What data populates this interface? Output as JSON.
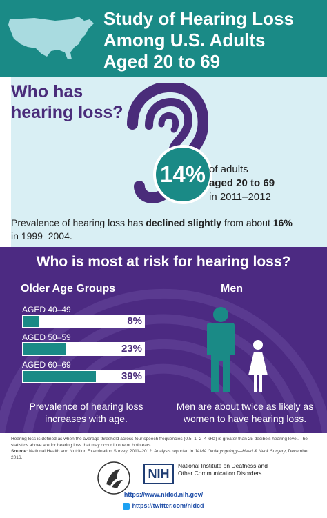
{
  "header": {
    "title_line1": "Study of Hearing Loss",
    "title_line2": "Among U.S. Adults",
    "title_line3": "Aged 20 to 69",
    "map_icon": "us-map-icon"
  },
  "who": {
    "title_line1": "Who has",
    "title_line2": "hearing loss?",
    "ear_icon": "ear-icon",
    "percent": "14%",
    "desc_line1": "of adults",
    "desc_line2": "aged 20 to 69",
    "desc_line3": "in 2011–2012",
    "prevalence_prefix": "Prevalence of hearing loss has ",
    "prevalence_bold": "declined slightly",
    "prevalence_mid": " from about ",
    "prevalence_pct": "16%",
    "prevalence_suffix": " in 1999–2004."
  },
  "risk": {
    "title": "Who is most at risk for hearing loss?",
    "age_heading": "Older Age Groups",
    "men_heading": "Men",
    "groups": [
      {
        "label": "AGED 40–49",
        "value": "8%",
        "fraction": 0.08
      },
      {
        "label": "AGED 50–59",
        "value": "23%",
        "fraction": 0.23
      },
      {
        "label": "AGED 60–69",
        "value": "39%",
        "fraction": 0.39
      }
    ],
    "age_note": "Prevalence of hearing loss increases with age.",
    "men_note": "Men are about twice as likely as women to have hearing loss.",
    "man_icon": "man-figure-icon",
    "woman_icon": "woman-figure-icon"
  },
  "footnote": {
    "line1": "Hearing loss is defined as when the average threshold across four speech frequencies (0.5–1–2–4 kHz) is greater than 25 decibels hearing level. The statistics above are for hearing loss that may occur in one or both ears.",
    "source_label": "Source:",
    "source_text": " National Health and Nutrition Examination Survey, 2011–2012. Analysis reported in ",
    "source_journal": "JAMA Otolaryngology—Head & Neck Surgery",
    "source_date": ", December 2016."
  },
  "logos": {
    "hhs_icon": "hhs-seal-icon",
    "nih_text": "NIH",
    "nih_name": "National Institute on Deafness and Other Communication Disorders"
  },
  "links": {
    "website": "https://www.nidcd.nih.gov/",
    "twitter": "https://twitter.com/nidcd"
  },
  "colors": {
    "teal": "#1a8a86",
    "purple": "#4c2a82",
    "light_blue": "#d9eff4"
  }
}
